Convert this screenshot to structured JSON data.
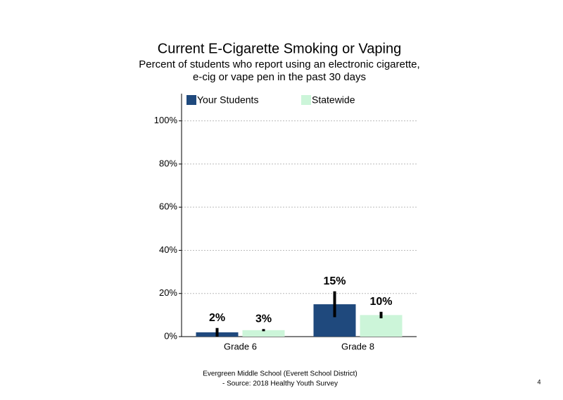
{
  "chart_data": {
    "type": "bar",
    "title": "Current E-Cigarette Smoking or Vaping",
    "subtitle": [
      "Percent of students who report using an electronic cigarette,",
      "e-cig or vape pen in the past 30 days"
    ],
    "categories": [
      "Grade 6",
      "Grade 8"
    ],
    "series": [
      {
        "name": "Your Students",
        "color": "#1f497d",
        "values": [
          2,
          15
        ],
        "value_labels": [
          "2%",
          "15%"
        ],
        "errors": [
          2,
          6
        ]
      },
      {
        "name": "Statewide",
        "color": "#ccf5d9",
        "values": [
          3,
          10
        ],
        "value_labels": [
          "3%",
          "10%"
        ],
        "errors": [
          0.5,
          1.5
        ]
      }
    ],
    "ylim": [
      0,
      110
    ],
    "yticks": [
      {
        "value": 0,
        "label": "0%"
      },
      {
        "value": 20,
        "label": "20%"
      },
      {
        "value": 40,
        "label": "40%"
      },
      {
        "value": 60,
        "label": "60%"
      },
      {
        "value": 80,
        "label": "80%"
      },
      {
        "value": 100,
        "label": "100%"
      }
    ],
    "grid": true,
    "footer": [
      "Evergreen Middle School (Everett School District)",
      "- Source: 2018 Healthy Youth Survey"
    ],
    "page_number": "4"
  }
}
